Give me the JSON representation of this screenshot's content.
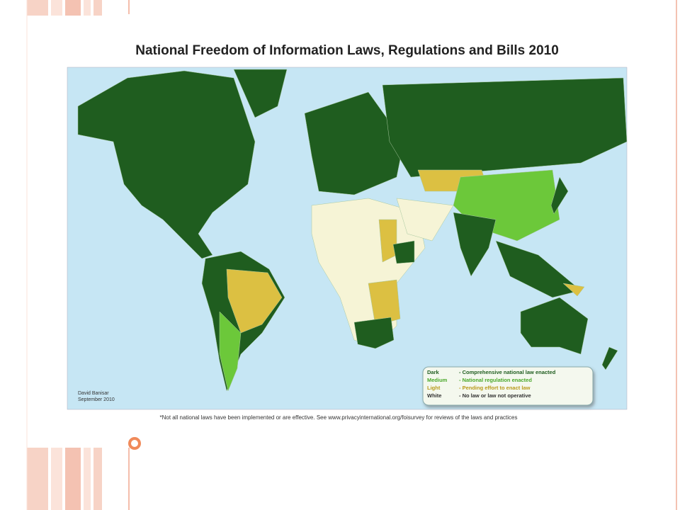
{
  "title": "National Freedom of Information Laws, Regulations and Bills 2010",
  "legend": [
    {
      "key": "Dark",
      "text": "- Comprehensive national law enacted"
    },
    {
      "key": "Medium",
      "text": "- National regulation enacted"
    },
    {
      "key": "Light",
      "text": "- Pending effort to enact law"
    },
    {
      "key": "White",
      "text": "- No law or law not operative"
    }
  ],
  "credit": {
    "author": "David Banisar",
    "date": "September 2010"
  },
  "footnote": "*Not all national laws have been implemented or are effective. See www.privacyinternational.org/foisurvey for reviews of the laws and practices"
}
